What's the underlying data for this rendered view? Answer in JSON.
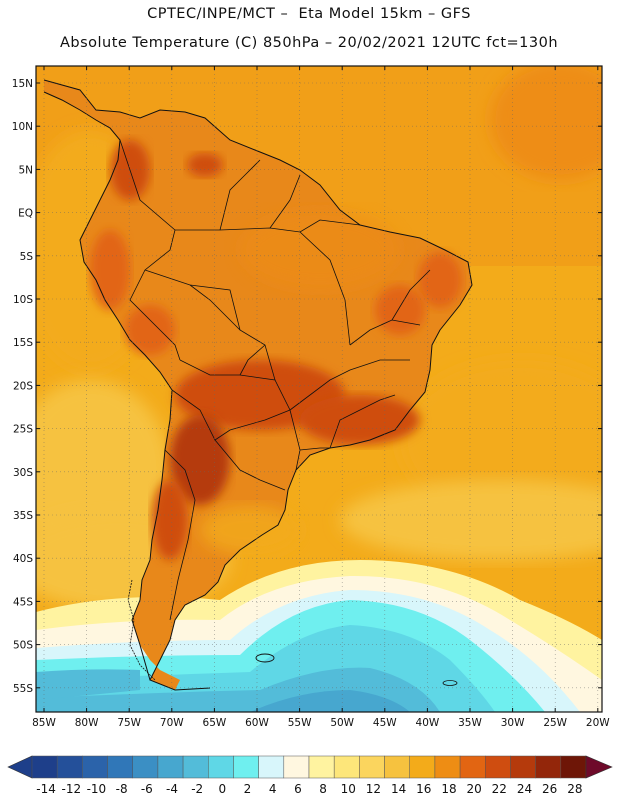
{
  "header": {
    "line1": "CPTEC/INPE/MCT –  Eta Model 15km – GFS",
    "line2": "Absolute Temperature (C) 850hPa – 20/02/2021 12UTC fct=130h"
  },
  "lat_labels": [
    "15N",
    "10N",
    "5N",
    "EQ",
    "5S",
    "10S",
    "15S",
    "20S",
    "25S",
    "30S",
    "35S",
    "40S",
    "45S",
    "50S",
    "55S"
  ],
  "lon_labels": [
    "85W",
    "80W",
    "75W",
    "70W",
    "65W",
    "60W",
    "55W",
    "50W",
    "45W",
    "40W",
    "35W",
    "30W",
    "25W",
    "20W"
  ],
  "colorbar": {
    "labels": [
      "-14",
      "-12",
      "-10",
      "-8",
      "-6",
      "-4",
      "-2",
      "0",
      "2",
      "4",
      "6",
      "8",
      "10",
      "12",
      "14",
      "16",
      "18",
      "20",
      "22",
      "24",
      "26",
      "28"
    ],
    "colors": [
      "#1e3f8a",
      "#24509a",
      "#2b63aa",
      "#3077b8",
      "#3b8fc4",
      "#47a7cf",
      "#53bcd9",
      "#5fd7e6",
      "#6fefef",
      "#d8f6fb",
      "#fff7e0",
      "#fff3a0",
      "#fde67a",
      "#fbd55e",
      "#f6c23f",
      "#f3ab1a",
      "#ee8d14",
      "#e26512",
      "#cf4d10",
      "#b53a0c",
      "#93260a",
      "#6e1607"
    ]
  },
  "colors": {
    "ocean_north": "#f1a519",
    "ocean_mid": "#f6c23f",
    "land_warm": "#e88a18",
    "land_hot": "#c8520f",
    "cold_water": "#5fd7e6",
    "deep_cold": "#47a7cf",
    "coast": "#111111"
  }
}
